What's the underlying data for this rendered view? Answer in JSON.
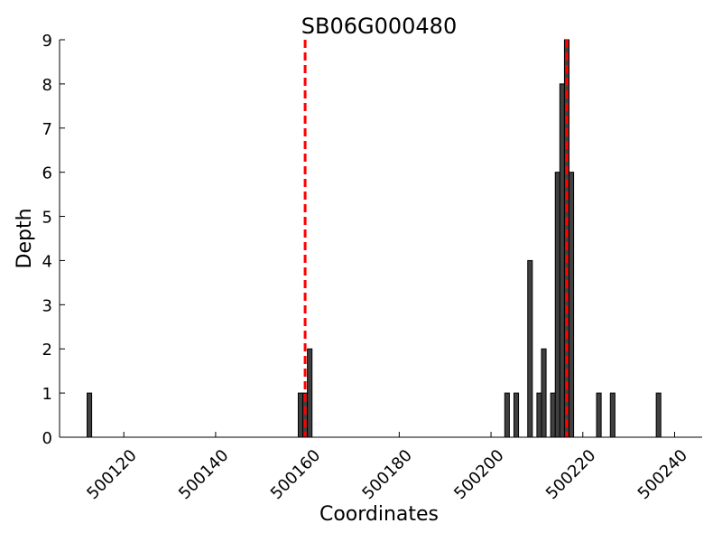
{
  "chart_data": {
    "type": "bar",
    "title": "SB06G000480",
    "xlabel": "Coordinates",
    "ylabel": "Depth",
    "xlim": [
      500106,
      500246
    ],
    "ylim": [
      0,
      9
    ],
    "xticks": [
      500120,
      500140,
      500160,
      500180,
      500200,
      500220,
      500240
    ],
    "yticks": [
      0,
      1,
      2,
      3,
      4,
      5,
      6,
      7,
      8,
      9
    ],
    "bar_width": 1,
    "bar_color": "#404040",
    "ref_line_color": "#ff0000",
    "reference_lines_x": [
      500159.5,
      500216.5
    ],
    "x": [
      500112,
      500158,
      500159,
      500160,
      500203,
      500205,
      500208,
      500210,
      500211,
      500213,
      500214,
      500215,
      500216,
      500217,
      500223,
      500226,
      500236
    ],
    "values": [
      1,
      1,
      1,
      2,
      1,
      1,
      4,
      1,
      2,
      1,
      6,
      8,
      9,
      6,
      1,
      1,
      1
    ],
    "grid": false,
    "legend": "none"
  }
}
